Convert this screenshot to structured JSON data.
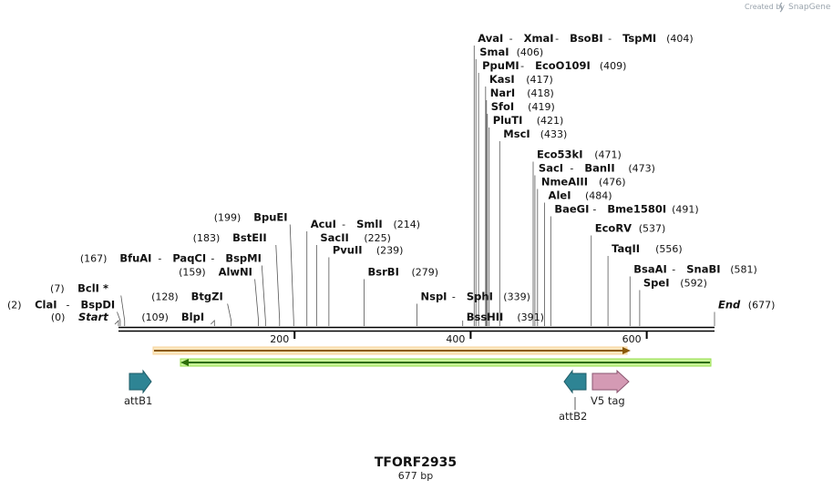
{
  "header": {
    "created_by": "Created by",
    "brand": "SnapGene"
  },
  "map": {
    "name": "TFORF2935",
    "length_label": "677 bp",
    "length": 677,
    "ticks": [
      200,
      400,
      600
    ]
  },
  "sites": [
    {
      "row": 0,
      "pos": 404,
      "parts": [
        "AvaI",
        "XmaI",
        "BsoBI",
        "TspMI"
      ],
      "label": "(404)"
    },
    {
      "row": 1,
      "pos": 406,
      "parts": [
        "SmaI"
      ],
      "label": "(406)"
    },
    {
      "row": 2,
      "pos": 409,
      "parts": [
        "PpuMI",
        "EcoO109I"
      ],
      "label": "(409)"
    },
    {
      "row": 3,
      "pos": 417,
      "parts": [
        "KasI"
      ],
      "label": "(417)"
    },
    {
      "row": 4,
      "pos": 418,
      "parts": [
        "NarI"
      ],
      "label": "(418)"
    },
    {
      "row": 5,
      "pos": 419,
      "parts": [
        "SfoI"
      ],
      "label": "(419)"
    },
    {
      "row": 6,
      "pos": 421,
      "parts": [
        "PluTI"
      ],
      "label": "(421)"
    },
    {
      "row": 7,
      "pos": 433,
      "parts": [
        "MscI"
      ],
      "label": "(433)"
    },
    {
      "row": 8.5,
      "pos": 471,
      "parts": [
        "Eco53kI"
      ],
      "label": "(471)"
    },
    {
      "row": 9.5,
      "pos": 473,
      "parts": [
        "SacI",
        "BanII"
      ],
      "label": "(473)"
    },
    {
      "row": 10.5,
      "pos": 476,
      "parts": [
        "NmeAIII"
      ],
      "label": "(476)"
    },
    {
      "row": 11.5,
      "pos": 484,
      "parts": [
        "AleI"
      ],
      "label": "(484)"
    },
    {
      "row": 12.5,
      "pos": 491,
      "parts": [
        "BaeGI",
        "Bme1580I"
      ],
      "label": "(491)"
    },
    {
      "row": 13.9,
      "pos": 537,
      "parts": [
        "EcoRV"
      ],
      "label": "(537)"
    },
    {
      "row": 15.4,
      "pos": 556,
      "parts": [
        "TaqII"
      ],
      "label": "(556)"
    },
    {
      "row": 16.9,
      "pos": 581,
      "parts": [
        "BsaAI",
        "SnaBI"
      ],
      "label": "(581)"
    },
    {
      "row": 17.9,
      "pos": 592,
      "parts": [
        "SpeI"
      ],
      "label": "(592)"
    },
    {
      "row": 19.5,
      "pos": 677,
      "parts": [
        "End"
      ],
      "label": "(677)",
      "italic": true
    },
    {
      "row": 13.1,
      "pos": 199,
      "parts": [
        "BpuEI"
      ],
      "label": "(199)",
      "side": "left"
    },
    {
      "row": 13.6,
      "pos": 214,
      "parts": [
        "AcuI",
        "SmlI"
      ],
      "label": "(214)"
    },
    {
      "row": 14.6,
      "pos": 225,
      "parts": [
        "SacII"
      ],
      "label": "(225)"
    },
    {
      "row": 14.6,
      "pos": 183,
      "parts": [
        "BstEII"
      ],
      "label": "(183)",
      "side": "left"
    },
    {
      "row": 15.5,
      "pos": 239,
      "parts": [
        "PvuII"
      ],
      "label": "(239)"
    },
    {
      "row": 16.1,
      "pos": 167,
      "parts": [
        "BfuAI",
        "PaqCI",
        "BspMI"
      ],
      "label": "(167)",
      "side": "left"
    },
    {
      "row": 17.1,
      "pos": 159,
      "parts": [
        "AlwNI"
      ],
      "label": "(159)",
      "side": "left"
    },
    {
      "row": 17.1,
      "pos": 279,
      "parts": [
        "BsrBI"
      ],
      "label": "(279)"
    },
    {
      "row": 18.3,
      "pos": 7,
      "parts": [
        "BclI *"
      ],
      "label": "(7)",
      "side": "left"
    },
    {
      "row": 18.9,
      "pos": 128,
      "parts": [
        "BtgZI"
      ],
      "label": "(128)",
      "side": "left"
    },
    {
      "row": 18.9,
      "pos": 339,
      "parts": [
        "NspI",
        "SphI"
      ],
      "label": "(339)"
    },
    {
      "row": 19.5,
      "pos": 2,
      "parts": [
        "ClaI",
        "BspDI"
      ],
      "label": "(2)",
      "side": "left"
    },
    {
      "row": 20.4,
      "pos": 0,
      "parts": [
        "Start"
      ],
      "label": "(0)",
      "side": "left",
      "italic": true
    },
    {
      "row": 20.4,
      "pos": 109,
      "parts": [
        "BlpI"
      ],
      "label": "(109)",
      "side": "left"
    },
    {
      "row": 20.4,
      "pos": 391,
      "parts": [
        "BssHII"
      ],
      "label": "(391)"
    }
  ],
  "features": [
    {
      "name": "attB1",
      "type": "arrow",
      "direction": "right",
      "color": "#2e8494"
    },
    {
      "name": "attB2",
      "type": "arrow",
      "direction": "left",
      "color": "#2e8494"
    },
    {
      "name": "V5 tag",
      "type": "arrow",
      "direction": "right",
      "color": "#d49ab4"
    },
    {
      "name": "",
      "type": "bar",
      "direction": "right",
      "color": "#f7a51d"
    },
    {
      "name": "",
      "type": "bar",
      "direction": "left",
      "color": "#95dd4a"
    }
  ]
}
